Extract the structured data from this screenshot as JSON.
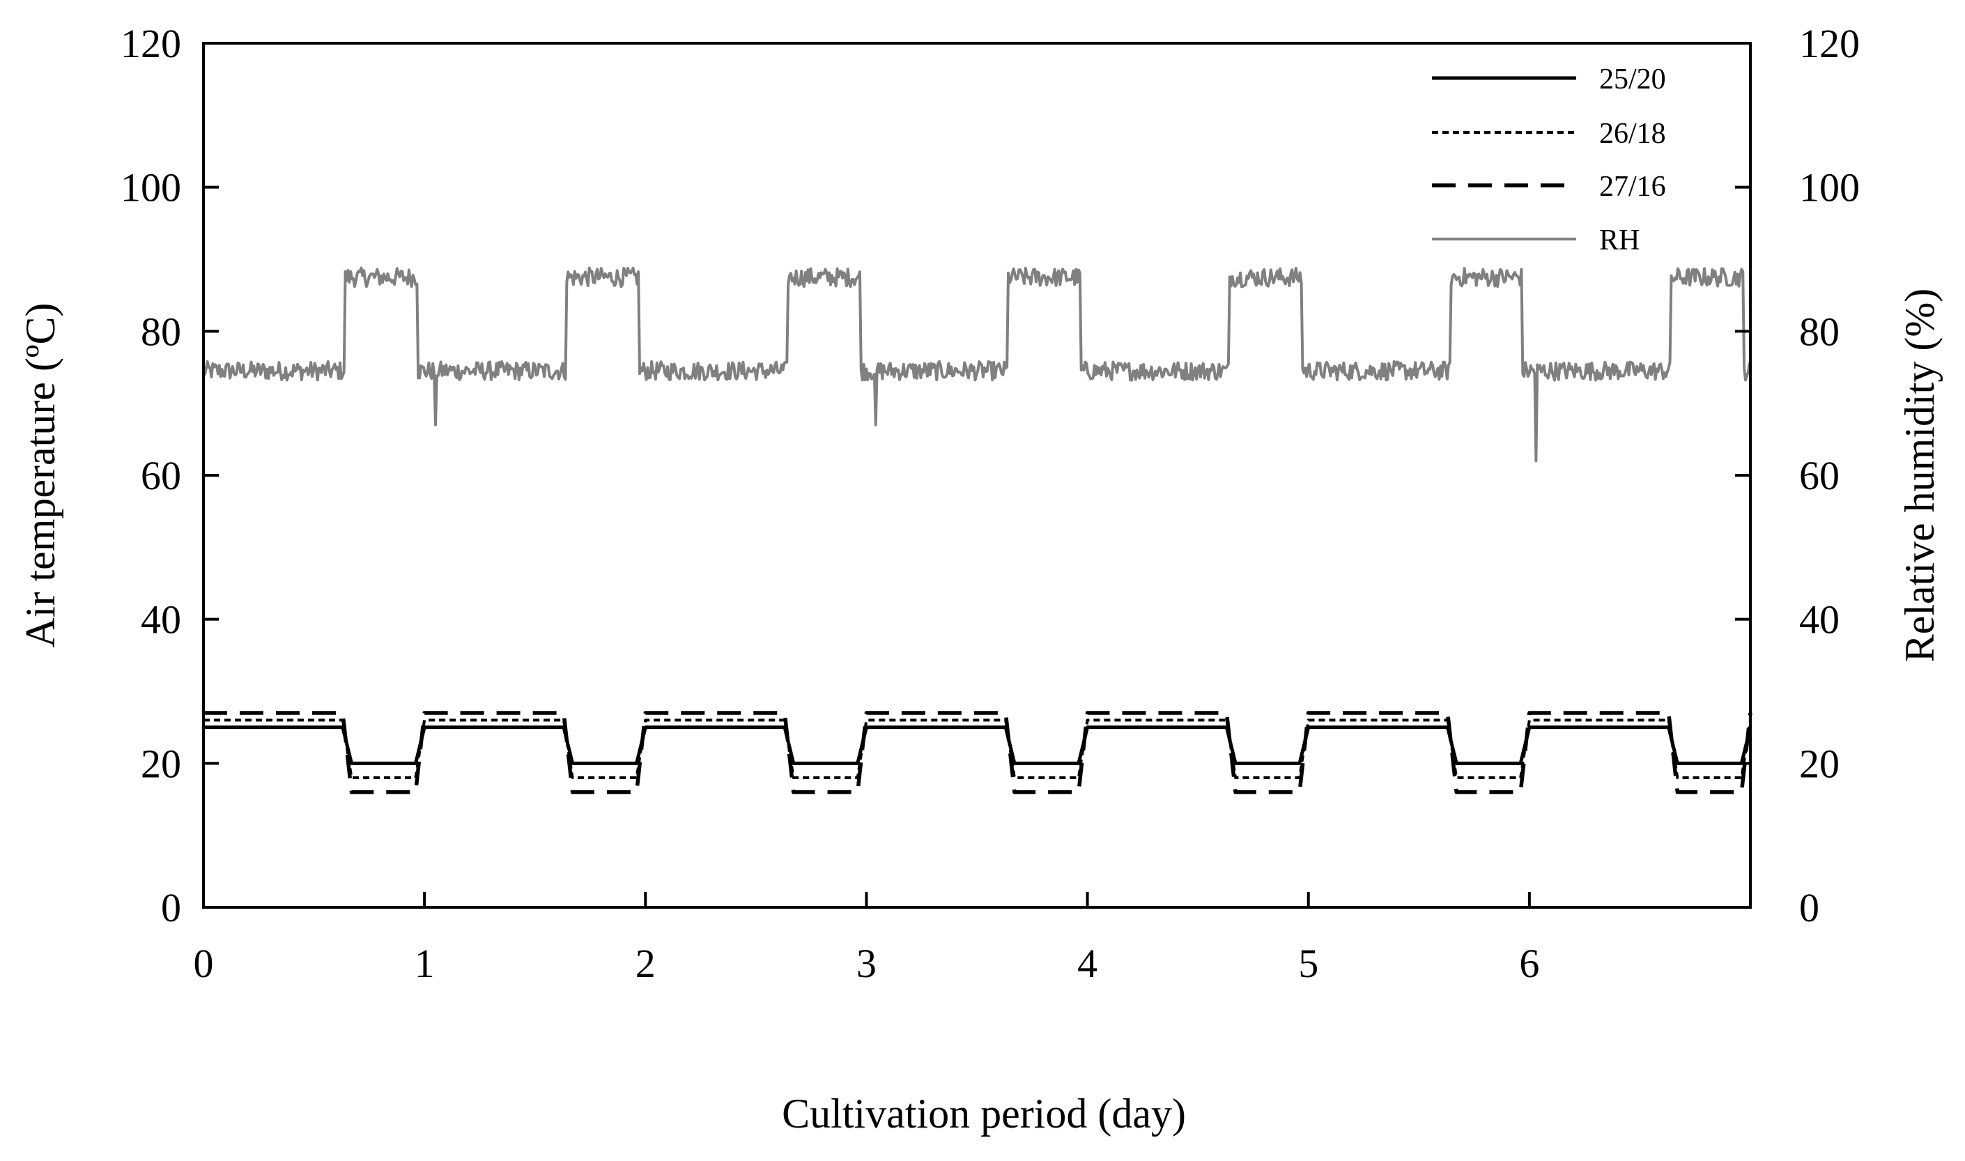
{
  "chart_data": {
    "type": "line",
    "xlabel": "Cultivation period (day)",
    "ylabel_left": "Air temperature (ºC)",
    "ylabel_right": "Relative humidity (%)",
    "xlim": [
      0,
      7
    ],
    "ylim_left": [
      0,
      120
    ],
    "ylim_right": [
      0,
      120
    ],
    "x_ticks": [
      0,
      1,
      2,
      3,
      4,
      5,
      6
    ],
    "y_ticks_left": [
      0,
      20,
      40,
      60,
      80,
      100,
      120
    ],
    "y_ticks_right": [
      0,
      20,
      40,
      60,
      80,
      100,
      120
    ],
    "legend_position": "top-right",
    "cycle": {
      "days": 7,
      "night_start_fraction": 0.64,
      "night_end_fraction": 0.97
    },
    "series": [
      {
        "name": "25/20",
        "axis": "left",
        "day_value": 25,
        "night_value": 20,
        "style": "solid",
        "color": "#000000"
      },
      {
        "name": "26/18",
        "axis": "left",
        "day_value": 26,
        "night_value": 18,
        "style": "dotted",
        "color": "#000000"
      },
      {
        "name": "27/16",
        "axis": "left",
        "day_value": 27,
        "night_value": 16,
        "style": "dashed",
        "color": "#000000"
      },
      {
        "name": "RH",
        "axis": "right",
        "day_value": 74.5,
        "night_value": 87.5,
        "style": "solid",
        "color": "#808080",
        "dips": [
          {
            "x": 1.05,
            "value": 67
          },
          {
            "x": 3.04,
            "value": 67
          },
          {
            "x": 6.03,
            "value": 62
          }
        ]
      }
    ]
  }
}
